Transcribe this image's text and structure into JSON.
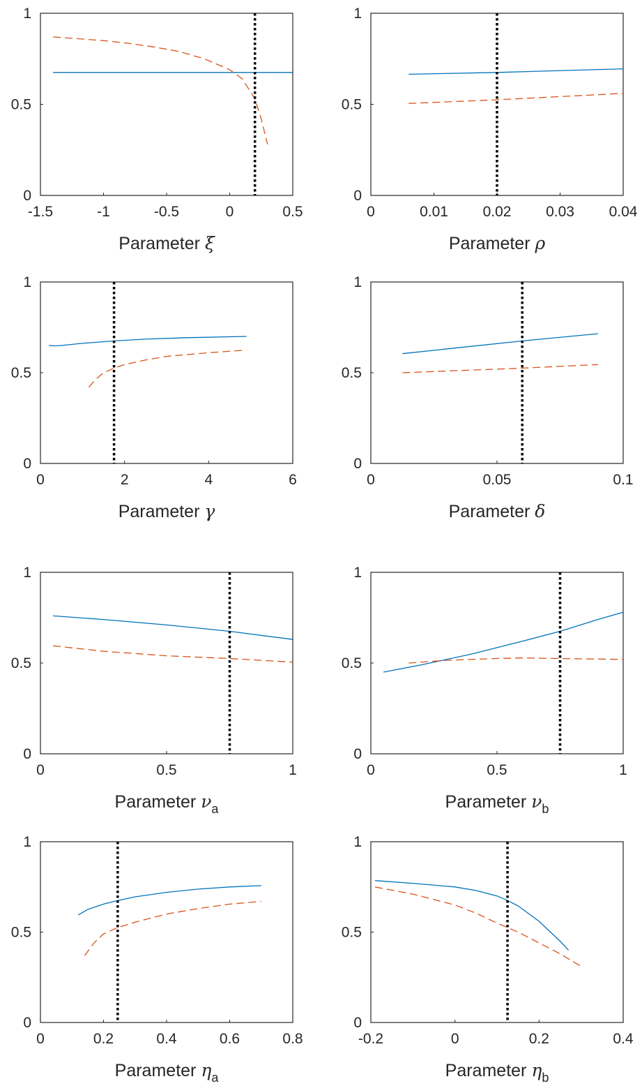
{
  "chart_data": [
    {
      "type": "line",
      "xlabel": "Parameter ξ",
      "xlabel_text": "Parameter",
      "xlabel_symbol": "ξ",
      "xlabel_sub": "",
      "xlim": [
        -1.5,
        0.5
      ],
      "ylim": [
        0,
        1
      ],
      "xticks": [
        -1.5,
        -1,
        -0.5,
        0,
        0.5
      ],
      "xtick_labels": [
        "-1.5",
        "-1",
        "-0.5",
        "0",
        "0.5"
      ],
      "yticks": [
        0,
        0.5,
        1
      ],
      "ytick_labels": [
        "0",
        "0.5",
        "1"
      ],
      "vline": 0.2,
      "series": [
        {
          "style": "solid",
          "color": "#0072BD",
          "x": [
            -1.4,
            -1.0,
            -0.5,
            0.0,
            0.2,
            0.5
          ],
          "y": [
            0.675,
            0.675,
            0.675,
            0.675,
            0.675,
            0.675
          ]
        },
        {
          "style": "dashed",
          "color": "#D95319",
          "x": [
            -1.4,
            -1.2,
            -1.0,
            -0.8,
            -0.6,
            -0.4,
            -0.2,
            0.0,
            0.1,
            0.2,
            0.25,
            0.3
          ],
          "y": [
            0.87,
            0.86,
            0.85,
            0.835,
            0.815,
            0.79,
            0.75,
            0.69,
            0.64,
            0.53,
            0.42,
            0.28
          ]
        }
      ]
    },
    {
      "type": "line",
      "xlabel": "Parameter ρ",
      "xlabel_text": "Parameter",
      "xlabel_symbol": "ρ",
      "xlabel_sub": "",
      "xlim": [
        0,
        0.04
      ],
      "ylim": [
        0,
        1
      ],
      "xticks": [
        0,
        0.01,
        0.02,
        0.03,
        0.04
      ],
      "xtick_labels": [
        "0",
        "0.01",
        "0.02",
        "0.03",
        "0.04"
      ],
      "yticks": [
        0,
        0.5,
        1
      ],
      "ytick_labels": [
        "0",
        "0.5",
        "1"
      ],
      "vline": 0.02,
      "series": [
        {
          "style": "solid",
          "color": "#0072BD",
          "x": [
            0.006,
            0.02,
            0.04
          ],
          "y": [
            0.665,
            0.675,
            0.695
          ]
        },
        {
          "style": "dashed",
          "color": "#D95319",
          "x": [
            0.006,
            0.02,
            0.04
          ],
          "y": [
            0.505,
            0.525,
            0.56
          ]
        }
      ]
    },
    {
      "type": "line",
      "xlabel": "Parameter γ",
      "xlabel_text": "Parameter",
      "xlabel_symbol": "γ",
      "xlabel_sub": "",
      "xlim": [
        0,
        6
      ],
      "ylim": [
        0,
        1
      ],
      "xticks": [
        0,
        2,
        4,
        6
      ],
      "xtick_labels": [
        "0",
        "2",
        "4",
        "6"
      ],
      "yticks": [
        0,
        0.5,
        1
      ],
      "ytick_labels": [
        "0",
        "0.5",
        "1"
      ],
      "vline": 1.75,
      "series": [
        {
          "style": "solid",
          "color": "#0072BD",
          "x": [
            0.2,
            0.35,
            0.5,
            1.0,
            1.75,
            2.5,
            3.5,
            4.9
          ],
          "y": [
            0.65,
            0.648,
            0.65,
            0.662,
            0.675,
            0.685,
            0.693,
            0.7
          ]
        },
        {
          "style": "dashed",
          "color": "#D95319",
          "x": [
            1.15,
            1.3,
            1.5,
            1.75,
            2.0,
            2.5,
            3.0,
            4.0,
            4.9
          ],
          "y": [
            0.42,
            0.46,
            0.5,
            0.525,
            0.545,
            0.57,
            0.59,
            0.61,
            0.625
          ]
        }
      ]
    },
    {
      "type": "line",
      "xlabel": "Parameter δ",
      "xlabel_text": "Parameter",
      "xlabel_symbol": "δ",
      "xlabel_sub": "",
      "xlim": [
        0,
        0.1
      ],
      "ylim": [
        0,
        1
      ],
      "xticks": [
        0,
        0.05,
        0.1
      ],
      "xtick_labels": [
        "0",
        "0.05",
        "0.1"
      ],
      "yticks": [
        0,
        0.5,
        1
      ],
      "ytick_labels": [
        "0",
        "0.5",
        "1"
      ],
      "vline": 0.06,
      "series": [
        {
          "style": "solid",
          "color": "#0072BD",
          "x": [
            0.0125,
            0.06,
            0.09
          ],
          "y": [
            0.605,
            0.675,
            0.715
          ]
        },
        {
          "style": "dashed",
          "color": "#D95319",
          "x": [
            0.0125,
            0.06,
            0.09
          ],
          "y": [
            0.5,
            0.525,
            0.545
          ]
        }
      ]
    },
    {
      "type": "line",
      "xlabel": "Parameter νa",
      "xlabel_text": "Parameter",
      "xlabel_symbol": "ν",
      "xlabel_sub": "a",
      "xlim": [
        0,
        1
      ],
      "ylim": [
        0,
        1
      ],
      "xticks": [
        0,
        0.5,
        1
      ],
      "xtick_labels": [
        "0",
        "0.5",
        "1"
      ],
      "yticks": [
        0,
        0.5,
        1
      ],
      "ytick_labels": [
        "0",
        "0.5",
        "1"
      ],
      "vline": 0.75,
      "series": [
        {
          "style": "solid",
          "color": "#0072BD",
          "x": [
            0.05,
            0.25,
            0.5,
            0.75,
            1.0
          ],
          "y": [
            0.76,
            0.74,
            0.71,
            0.675,
            0.63
          ]
        },
        {
          "style": "dashed",
          "color": "#D95319",
          "x": [
            0.05,
            0.25,
            0.5,
            0.75,
            1.0
          ],
          "y": [
            0.595,
            0.565,
            0.54,
            0.525,
            0.505
          ]
        }
      ]
    },
    {
      "type": "line",
      "xlabel": "Parameter νb",
      "xlabel_text": "Parameter",
      "xlabel_symbol": "ν",
      "xlabel_sub": "b",
      "xlim": [
        0,
        1
      ],
      "ylim": [
        0,
        1
      ],
      "xticks": [
        0,
        0.5,
        1
      ],
      "xtick_labels": [
        "0",
        "0.5",
        "1"
      ],
      "yticks": [
        0,
        0.5,
        1
      ],
      "ytick_labels": [
        "0",
        "0.5",
        "1"
      ],
      "vline": 0.75,
      "series": [
        {
          "style": "solid",
          "color": "#0072BD",
          "x": [
            0.05,
            0.2,
            0.4,
            0.6,
            0.75,
            0.9,
            1.0
          ],
          "y": [
            0.45,
            0.49,
            0.55,
            0.62,
            0.675,
            0.74,
            0.78
          ]
        },
        {
          "style": "dashed",
          "color": "#D95319",
          "x": [
            0.15,
            0.3,
            0.5,
            0.6,
            0.75,
            0.9,
            1.0
          ],
          "y": [
            0.5,
            0.515,
            0.525,
            0.528,
            0.525,
            0.522,
            0.52
          ]
        }
      ]
    },
    {
      "type": "line",
      "xlabel": "Parameter ηa",
      "xlabel_text": "Parameter",
      "xlabel_symbol": "η",
      "xlabel_sub": "a",
      "xlim": [
        0,
        0.8
      ],
      "ylim": [
        0,
        1
      ],
      "xticks": [
        0,
        0.2,
        0.4,
        0.6,
        0.8
      ],
      "xtick_labels": [
        "0",
        "0.2",
        "0.4",
        "0.6",
        "0.8"
      ],
      "yticks": [
        0,
        0.5,
        1
      ],
      "ytick_labels": [
        "0",
        "0.5",
        "1"
      ],
      "vline": 0.245,
      "series": [
        {
          "style": "solid",
          "color": "#0072BD",
          "x": [
            0.12,
            0.15,
            0.2,
            0.245,
            0.3,
            0.4,
            0.5,
            0.6,
            0.7
          ],
          "y": [
            0.595,
            0.625,
            0.655,
            0.675,
            0.695,
            0.72,
            0.738,
            0.75,
            0.757
          ]
        },
        {
          "style": "dashed",
          "color": "#D95319",
          "x": [
            0.14,
            0.17,
            0.2,
            0.245,
            0.3,
            0.4,
            0.5,
            0.6,
            0.7
          ],
          "y": [
            0.37,
            0.44,
            0.49,
            0.525,
            0.555,
            0.6,
            0.63,
            0.655,
            0.67
          ]
        }
      ]
    },
    {
      "type": "line",
      "xlabel": "Parameter ηb",
      "xlabel_text": "Parameter",
      "xlabel_symbol": "η",
      "xlabel_sub": "b",
      "xlim": [
        -0.2,
        0.4
      ],
      "ylim": [
        0,
        1
      ],
      "xticks": [
        -0.2,
        0,
        0.2,
        0.4
      ],
      "xtick_labels": [
        "-0.2",
        "0",
        "0.2",
        "0.4"
      ],
      "yticks": [
        0,
        0.5,
        1
      ],
      "ytick_labels": [
        "0",
        "0.5",
        "1"
      ],
      "vline": 0.125,
      "series": [
        {
          "style": "solid",
          "color": "#0072BD",
          "x": [
            -0.19,
            -0.1,
            0.0,
            0.05,
            0.1,
            0.125,
            0.15,
            0.2,
            0.25,
            0.27
          ],
          "y": [
            0.785,
            0.77,
            0.75,
            0.73,
            0.7,
            0.675,
            0.645,
            0.56,
            0.45,
            0.4
          ]
        },
        {
          "style": "dashed",
          "color": "#D95319",
          "x": [
            -0.19,
            -0.1,
            0.0,
            0.05,
            0.1,
            0.125,
            0.15,
            0.2,
            0.25,
            0.3
          ],
          "y": [
            0.75,
            0.71,
            0.65,
            0.605,
            0.55,
            0.525,
            0.5,
            0.44,
            0.38,
            0.31
          ]
        }
      ]
    }
  ]
}
